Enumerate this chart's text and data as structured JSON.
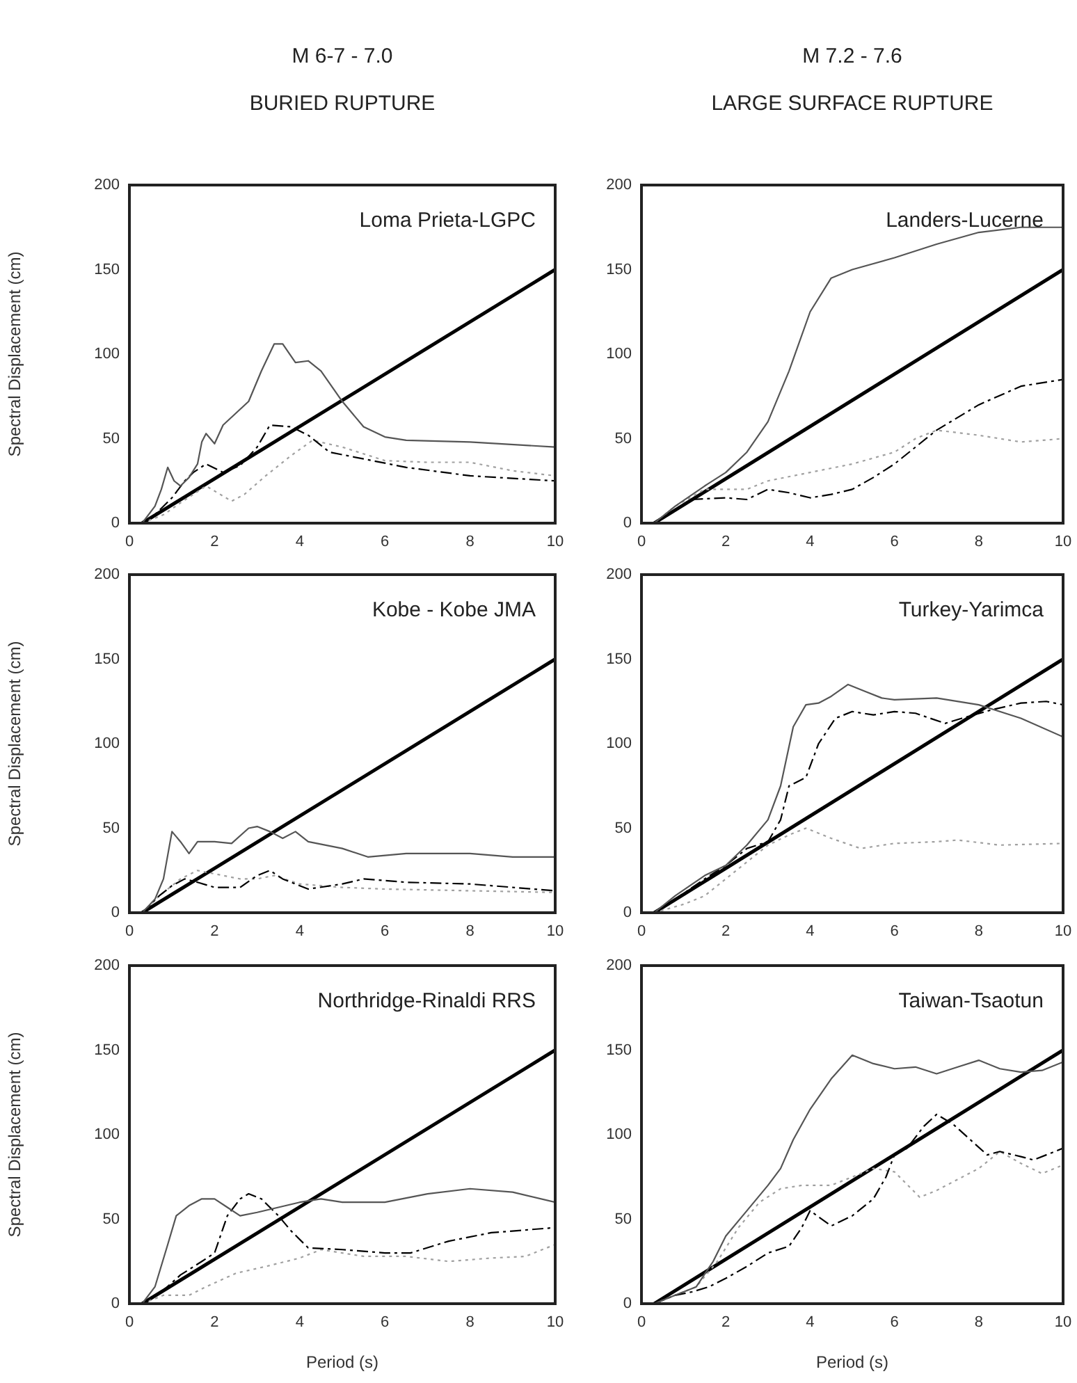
{
  "chart_data": [
    {
      "type": "line",
      "title": "M 6-7 - 7.0",
      "subtitle": "BURIED RUPTURE",
      "ylabel": "Spectral Displacement (cm)",
      "annotations": [
        "Loma Prieta-LGPC"
      ],
      "xlim": [
        0,
        10
      ],
      "xticks": [
        0,
        2,
        4,
        6,
        8,
        10
      ],
      "ylim": [
        0,
        200
      ],
      "yticks": [
        0,
        50,
        100,
        150,
        200
      ],
      "grid": false,
      "legend": false,
      "marker": "none",
      "series": [
        {
          "color": "#555555",
          "line_style": "solid",
          "x": [
            0.3,
            0.6,
            0.75,
            0.9,
            1.05,
            1.2,
            1.4,
            1.6,
            1.7,
            1.8,
            2.0,
            2.2,
            2.5,
            2.8,
            3.1,
            3.4,
            3.6,
            3.9,
            4.2,
            4.5,
            5.0,
            5.5,
            6.0,
            6.5,
            8,
            10
          ],
          "values": [
            0,
            10,
            20,
            33,
            25,
            22,
            27,
            35,
            48,
            53,
            47,
            58,
            65,
            72,
            90,
            106,
            106,
            95,
            96,
            90,
            72,
            57,
            51,
            49,
            48,
            45
          ]
        },
        {
          "color": "#000000",
          "line_style": "dashed",
          "x": [
            0.3,
            0.6,
            1.0,
            1.3,
            1.5,
            1.8,
            2.2,
            2.6,
            3.0,
            3.3,
            3.8,
            4.2,
            4.7,
            5.5,
            6.5,
            8,
            10
          ],
          "values": [
            0,
            5,
            15,
            25,
            30,
            35,
            30,
            34,
            45,
            58,
            57,
            52,
            42,
            38,
            33,
            28,
            25
          ]
        },
        {
          "color": "#a0a0a0",
          "line_style": "dotted",
          "x": [
            0.3,
            0.8,
            1.2,
            1.8,
            2.4,
            2.7,
            3.2,
            3.8,
            4.3,
            5.0,
            6,
            7,
            8,
            9,
            10
          ],
          "values": [
            0,
            5,
            12,
            22,
            13,
            17,
            28,
            40,
            49,
            45,
            37,
            36,
            36,
            31,
            28
          ]
        },
        {
          "color": "#000000",
          "line_style": "solid",
          "x": [
            0.3,
            10
          ],
          "values": [
            0,
            150
          ]
        }
      ]
    },
    {
      "type": "line",
      "title": "M 7.2 - 7.6",
      "subtitle": "LARGE SURFACE RUPTURE",
      "annotations": [
        "Landers-Lucerne"
      ],
      "xlim": [
        0,
        10
      ],
      "xticks": [
        0,
        2,
        4,
        6,
        8,
        10
      ],
      "ylim": [
        0,
        200
      ],
      "yticks": [
        0,
        50,
        100,
        150,
        200
      ],
      "grid": false,
      "legend": false,
      "marker": "none",
      "series": [
        {
          "color": "#555555",
          "line_style": "solid",
          "x": [
            0.3,
            0.8,
            1.5,
            2.0,
            2.5,
            3,
            3.5,
            4,
            4.5,
            5,
            6,
            7,
            8,
            9,
            10
          ],
          "values": [
            0,
            10,
            22,
            30,
            42,
            60,
            90,
            125,
            145,
            150,
            157,
            165,
            172,
            175,
            175
          ]
        },
        {
          "color": "#000000",
          "line_style": "dashed",
          "x": [
            0.3,
            0.8,
            1.2,
            2,
            2.5,
            3,
            3.5,
            4,
            4.5,
            5,
            5.5,
            6,
            6.5,
            7,
            8,
            9,
            10
          ],
          "values": [
            0,
            8,
            14,
            15,
            14,
            20,
            18,
            15,
            17,
            20,
            27,
            35,
            45,
            55,
            70,
            81,
            85
          ]
        },
        {
          "color": "#a0a0a0",
          "line_style": "dotted",
          "x": [
            0.3,
            0.8,
            1.5,
            2.5,
            3,
            4,
            5,
            6,
            6.5,
            7,
            8,
            9,
            10
          ],
          "values": [
            0,
            10,
            20,
            20,
            25,
            30,
            35,
            42,
            50,
            55,
            52,
            48,
            50
          ]
        },
        {
          "color": "#000000",
          "line_style": "solid",
          "x": [
            0.3,
            10
          ],
          "values": [
            0,
            150
          ]
        }
      ]
    },
    {
      "type": "line",
      "ylabel": "Spectral Displacement (cm)",
      "annotations": [
        "Kobe - Kobe JMA"
      ],
      "xlim": [
        0,
        10
      ],
      "xticks": [
        0,
        2,
        4,
        6,
        8,
        10
      ],
      "ylim": [
        0,
        200
      ],
      "yticks": [
        0,
        50,
        100,
        150,
        200
      ],
      "grid": false,
      "legend": false,
      "marker": "none",
      "series": [
        {
          "color": "#555555",
          "line_style": "solid",
          "x": [
            0.3,
            0.6,
            0.8,
            1.0,
            1.2,
            1.4,
            1.6,
            2.0,
            2.4,
            2.8,
            3.0,
            3.3,
            3.6,
            3.9,
            4.2,
            5,
            5.6,
            6.5,
            8,
            9,
            10
          ],
          "values": [
            0,
            8,
            20,
            48,
            42,
            35,
            42,
            42,
            41,
            50,
            51,
            48,
            44,
            48,
            42,
            38,
            33,
            35,
            35,
            33,
            33
          ]
        },
        {
          "color": "#000000",
          "line_style": "dashed",
          "x": [
            0.3,
            0.7,
            1.0,
            1.3,
            1.6,
            2,
            2.6,
            3.0,
            3.3,
            3.6,
            4.2,
            5,
            5.5,
            6.5,
            8,
            10
          ],
          "values": [
            0,
            10,
            16,
            20,
            18,
            15,
            15,
            22,
            25,
            20,
            14,
            17,
            20,
            18,
            17,
            13
          ]
        },
        {
          "color": "#a0a0a0",
          "line_style": "dotted",
          "x": [
            0.3,
            0.7,
            1.2,
            1.6,
            2,
            2.6,
            3,
            3.4,
            4,
            5,
            6,
            8,
            10
          ],
          "values": [
            0,
            10,
            20,
            25,
            23,
            20,
            20,
            22,
            17,
            15,
            14,
            13,
            12
          ]
        },
        {
          "color": "#000000",
          "line_style": "solid",
          "x": [
            0.3,
            10
          ],
          "values": [
            0,
            150
          ]
        }
      ]
    },
    {
      "type": "line",
      "annotations": [
        "Turkey-Yarimca"
      ],
      "xlim": [
        0,
        10
      ],
      "xticks": [
        0,
        2,
        4,
        6,
        8,
        10
      ],
      "ylim": [
        0,
        200
      ],
      "yticks": [
        0,
        50,
        100,
        150,
        200
      ],
      "grid": false,
      "legend": false,
      "marker": "none",
      "series": [
        {
          "color": "#555555",
          "line_style": "solid",
          "x": [
            0.3,
            0.8,
            1.5,
            2,
            2.5,
            3,
            3.3,
            3.6,
            3.9,
            4.2,
            4.5,
            4.9,
            5.3,
            5.7,
            6,
            7,
            8,
            9,
            10
          ],
          "values": [
            0,
            10,
            22,
            28,
            40,
            55,
            75,
            110,
            123,
            124,
            128,
            135,
            131,
            127,
            126,
            127,
            123,
            115,
            104
          ]
        },
        {
          "color": "#000000",
          "line_style": "dashed",
          "x": [
            0.3,
            0.8,
            1.5,
            2,
            2.5,
            3,
            3.3,
            3.5,
            3.9,
            4.2,
            4.6,
            5,
            5.5,
            6,
            6.5,
            7.2,
            7.6,
            8.3,
            9,
            9.6,
            10
          ],
          "values": [
            0,
            8,
            20,
            28,
            38,
            42,
            55,
            75,
            80,
            100,
            115,
            119,
            117,
            119,
            118,
            112,
            115,
            120,
            124,
            125,
            123
          ]
        },
        {
          "color": "#a0a0a0",
          "line_style": "dotted",
          "x": [
            0.3,
            1,
            1.5,
            2,
            2.5,
            3,
            3.5,
            3.9,
            4.5,
            5.2,
            6,
            7,
            7.5,
            8.5,
            10
          ],
          "values": [
            0,
            5,
            10,
            20,
            30,
            40,
            46,
            50,
            44,
            38,
            41,
            42,
            43,
            40,
            41
          ]
        },
        {
          "color": "#000000",
          "line_style": "solid",
          "x": [
            0.3,
            10
          ],
          "values": [
            0,
            150
          ]
        }
      ]
    },
    {
      "type": "line",
      "xlabel": "Period (s)",
      "ylabel": "Spectral Displacement (cm)",
      "annotations": [
        "Northridge-Rinaldi RRS"
      ],
      "xlim": [
        0,
        10
      ],
      "xticks": [
        0,
        2,
        4,
        6,
        8,
        10
      ],
      "ylim": [
        0,
        200
      ],
      "yticks": [
        0,
        50,
        100,
        150,
        200
      ],
      "grid": false,
      "legend": false,
      "marker": "none",
      "series": [
        {
          "color": "#555555",
          "line_style": "solid",
          "x": [
            0.3,
            0.6,
            0.9,
            1.1,
            1.4,
            1.7,
            2.0,
            2.3,
            2.6,
            3.0,
            3.5,
            4,
            4.5,
            5,
            6,
            7,
            8,
            9,
            10
          ],
          "values": [
            0,
            10,
            35,
            52,
            58,
            62,
            62,
            57,
            52,
            54,
            57,
            60,
            62,
            60,
            60,
            65,
            68,
            66,
            60
          ]
        },
        {
          "color": "#000000",
          "line_style": "dashed",
          "x": [
            0.3,
            0.8,
            1.2,
            1.7,
            2.0,
            2.3,
            2.6,
            2.8,
            3.1,
            3.5,
            3.8,
            4.2,
            5,
            6,
            6.6,
            7.5,
            8.5,
            10
          ],
          "values": [
            0,
            8,
            17,
            25,
            30,
            52,
            62,
            65,
            62,
            52,
            43,
            33,
            32,
            30,
            30,
            37,
            42,
            45
          ]
        },
        {
          "color": "#a0a0a0",
          "line_style": "dotted",
          "x": [
            0.3,
            0.8,
            1.4,
            1.8,
            2.5,
            3.2,
            4,
            4.5,
            5.5,
            6.5,
            7.5,
            8.5,
            9.3,
            10
          ],
          "values": [
            0,
            5,
            5,
            10,
            18,
            22,
            27,
            32,
            28,
            28,
            25,
            27,
            28,
            35
          ]
        },
        {
          "color": "#000000",
          "line_style": "solid",
          "x": [
            0.3,
            10
          ],
          "values": [
            0,
            150
          ]
        }
      ]
    },
    {
      "type": "line",
      "xlabel": "Period (s)",
      "annotations": [
        "Taiwan-Tsaotun"
      ],
      "xlim": [
        0,
        10
      ],
      "xticks": [
        0,
        2,
        4,
        6,
        8,
        10
      ],
      "ylim": [
        0,
        200
      ],
      "yticks": [
        0,
        50,
        100,
        150,
        200
      ],
      "grid": false,
      "legend": false,
      "marker": "none",
      "series": [
        {
          "color": "#555555",
          "line_style": "solid",
          "x": [
            0.3,
            0.8,
            1.3,
            1.7,
            2,
            2.5,
            3,
            3.3,
            3.6,
            4,
            4.5,
            5,
            5.5,
            6,
            6.5,
            7,
            7.5,
            8,
            8.5,
            9,
            9.5,
            10
          ],
          "values": [
            0,
            5,
            10,
            25,
            40,
            55,
            70,
            80,
            97,
            115,
            133,
            147,
            142,
            139,
            140,
            136,
            140,
            144,
            139,
            137,
            138,
            143
          ]
        },
        {
          "color": "#000000",
          "line_style": "dashed",
          "x": [
            0.3,
            0.8,
            1.2,
            1.6,
            2,
            2.5,
            3,
            3.5,
            3.8,
            4,
            4.5,
            5,
            5.5,
            5.8,
            6,
            6.3,
            6.7,
            7,
            7.4,
            7.8,
            8.2,
            8.5,
            9,
            9.3,
            10
          ],
          "values": [
            0,
            5,
            7,
            10,
            15,
            22,
            30,
            34,
            45,
            55,
            46,
            52,
            62,
            75,
            88,
            92,
            105,
            112,
            106,
            97,
            88,
            90,
            87,
            85,
            92
          ]
        },
        {
          "color": "#a0a0a0",
          "line_style": "dotted",
          "x": [
            0.3,
            0.8,
            1.3,
            1.8,
            2.3,
            2.8,
            3.3,
            3.8,
            4.5,
            5,
            5.5,
            6,
            6.6,
            7,
            8,
            8.5,
            9,
            9.5,
            10
          ],
          "values": [
            0,
            5,
            10,
            25,
            45,
            60,
            68,
            70,
            70,
            75,
            80,
            78,
            63,
            67,
            80,
            90,
            83,
            77,
            82
          ]
        },
        {
          "color": "#000000",
          "line_style": "solid",
          "x": [
            0.3,
            10
          ],
          "values": [
            0,
            150
          ]
        }
      ]
    }
  ]
}
